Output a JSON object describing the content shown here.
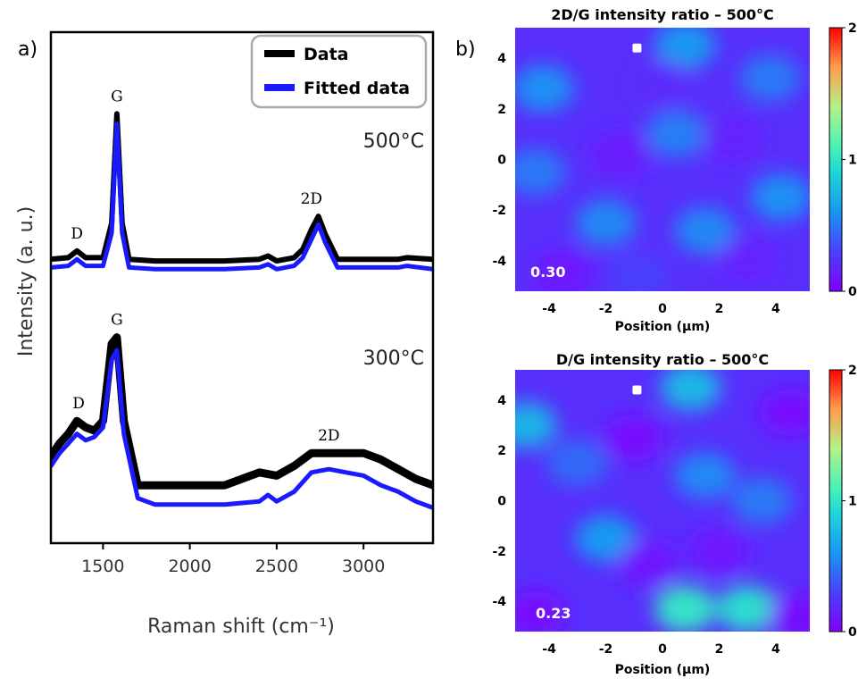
{
  "panel_labels": {
    "a": "a)",
    "b": "b)"
  },
  "chart_data": [
    {
      "type": "line",
      "xlabel": "Raman shift (cm⁻¹)",
      "ylabel": "Intensity (a. u.)",
      "xlim": [
        1200,
        3400
      ],
      "xticks": [
        1500,
        2000,
        2500,
        3000
      ],
      "legend": {
        "placement": "top-right",
        "entries": [
          "Data",
          "Fitted data"
        ]
      },
      "colors": {
        "data": "#000000",
        "fit": "#1a1aff"
      },
      "spectra": [
        {
          "temperature": "500°C",
          "peak_labels": [
            {
              "text": "D",
              "x": 1350
            },
            {
              "text": "G",
              "x": 1580
            },
            {
              "text": "2D",
              "x": 2700
            }
          ],
          "series": [
            {
              "name": "Data",
              "x": [
                1200,
                1300,
                1350,
                1400,
                1500,
                1550,
                1580,
                1610,
                1650,
                1800,
                2000,
                2200,
                2400,
                2450,
                2500,
                2600,
                2650,
                2700,
                2740,
                2780,
                2850,
                3000,
                3200,
                3250,
                3400
              ],
              "y": [
                0.08,
                0.09,
                0.13,
                0.09,
                0.09,
                0.3,
                0.96,
                0.3,
                0.08,
                0.07,
                0.07,
                0.07,
                0.08,
                0.1,
                0.07,
                0.09,
                0.14,
                0.26,
                0.34,
                0.23,
                0.08,
                0.08,
                0.08,
                0.09,
                0.08
              ]
            },
            {
              "name": "Fitted data",
              "x": [
                1200,
                1300,
                1350,
                1400,
                1500,
                1550,
                1580,
                1610,
                1650,
                1800,
                2000,
                2200,
                2400,
                2450,
                2500,
                2600,
                2650,
                2700,
                2740,
                2780,
                2850,
                3000,
                3200,
                3250,
                3400
              ],
              "y": [
                0.03,
                0.04,
                0.08,
                0.04,
                0.04,
                0.24,
                0.9,
                0.24,
                0.03,
                0.02,
                0.02,
                0.02,
                0.03,
                0.05,
                0.02,
                0.04,
                0.09,
                0.2,
                0.29,
                0.18,
                0.03,
                0.03,
                0.03,
                0.04,
                0.02
              ]
            }
          ]
        },
        {
          "temperature": "300°C",
          "peak_labels": [
            {
              "text": "D",
              "x": 1360
            },
            {
              "text": "G",
              "x": 1580
            },
            {
              "text": "2D",
              "x": 2800
            }
          ],
          "series": [
            {
              "name": "Data",
              "x": [
                1200,
                1250,
                1300,
                1350,
                1400,
                1450,
                1500,
                1550,
                1580,
                1620,
                1700,
                1800,
                2000,
                2200,
                2400,
                2500,
                2600,
                2700,
                2800,
                2900,
                3000,
                3100,
                3200,
                3300,
                3400
              ],
              "y": [
                0.17,
                0.21,
                0.24,
                0.28,
                0.26,
                0.25,
                0.28,
                0.52,
                0.54,
                0.28,
                0.08,
                0.08,
                0.08,
                0.08,
                0.12,
                0.11,
                0.14,
                0.18,
                0.18,
                0.18,
                0.18,
                0.16,
                0.13,
                0.1,
                0.08
              ]
            },
            {
              "name": "Fitted data",
              "x": [
                1200,
                1250,
                1300,
                1350,
                1400,
                1450,
                1500,
                1550,
                1580,
                1620,
                1700,
                1800,
                2000,
                2200,
                2400,
                2450,
                2500,
                2600,
                2700,
                2800,
                2900,
                3000,
                3100,
                3200,
                3300,
                3400
              ],
              "y": [
                0.14,
                0.18,
                0.21,
                0.24,
                0.22,
                0.23,
                0.26,
                0.47,
                0.5,
                0.24,
                0.04,
                0.02,
                0.02,
                0.02,
                0.03,
                0.05,
                0.03,
                0.06,
                0.12,
                0.13,
                0.12,
                0.11,
                0.08,
                0.06,
                0.03,
                0.01
              ]
            }
          ]
        }
      ]
    },
    {
      "type": "heatmap",
      "title": "2D/G intensity ratio – 500°C",
      "xlabel": "Position (µm)",
      "xlim": [
        -5.2,
        5.2
      ],
      "ylim": [
        -5.2,
        5.2
      ],
      "xticks": [
        -4,
        -2,
        0,
        2,
        4
      ],
      "yticks": [
        4,
        2,
        0,
        -2,
        -4
      ],
      "colorbar": {
        "range": [
          0,
          2
        ],
        "ticks": [
          0,
          1,
          2
        ],
        "colormap": "rainbow"
      },
      "annotation": "0.30",
      "marker": {
        "x": -0.9,
        "y": 4.4
      },
      "blobs": [
        {
          "x": 0.8,
          "y": 4.5,
          "v": 0.62
        },
        {
          "x": -4.2,
          "y": 2.8,
          "v": 0.58
        },
        {
          "x": 0.5,
          "y": 1.0,
          "v": 0.52
        },
        {
          "x": 3.8,
          "y": 3.2,
          "v": 0.5
        },
        {
          "x": -2.0,
          "y": -2.5,
          "v": 0.55
        },
        {
          "x": 1.5,
          "y": -2.8,
          "v": 0.55
        },
        {
          "x": 4.2,
          "y": -1.5,
          "v": 0.58
        },
        {
          "x": -4.5,
          "y": -0.5,
          "v": 0.5
        },
        {
          "x": -1.5,
          "y": 0.2,
          "v": 0.12
        },
        {
          "x": 2.5,
          "y": 0.8,
          "v": 0.15
        },
        {
          "x": -3.5,
          "y": -4.5,
          "v": 0.1
        },
        {
          "x": 3.0,
          "y": -4.0,
          "v": 0.15
        },
        {
          "x": 0.0,
          "y": 3.0,
          "v": 0.2
        },
        {
          "x": -0.8,
          "y": -4.6,
          "v": 0.3
        }
      ]
    },
    {
      "type": "heatmap",
      "title": "D/G intensity ratio – 500°C",
      "xlabel": "Position (µm)",
      "xlim": [
        -5.2,
        5.2
      ],
      "ylim": [
        -5.2,
        5.2
      ],
      "xticks": [
        -4,
        -2,
        0,
        2,
        4
      ],
      "yticks": [
        4,
        2,
        0,
        -2,
        -4
      ],
      "colorbar": {
        "range": [
          0,
          2
        ],
        "ticks": [
          0,
          1,
          2
        ],
        "colormap": "rainbow"
      },
      "annotation": "0.23",
      "marker": {
        "x": -0.9,
        "y": 4.4
      },
      "blobs": [
        {
          "x": 1.0,
          "y": 4.5,
          "v": 0.75
        },
        {
          "x": -4.8,
          "y": 3.0,
          "v": 0.72
        },
        {
          "x": 0.8,
          "y": -4.3,
          "v": 1.0
        },
        {
          "x": 3.0,
          "y": -4.3,
          "v": 0.95
        },
        {
          "x": -2.0,
          "y": -1.5,
          "v": 0.62
        },
        {
          "x": 1.5,
          "y": 1.0,
          "v": 0.55
        },
        {
          "x": -3.0,
          "y": 1.5,
          "v": 0.45
        },
        {
          "x": 3.5,
          "y": 0.0,
          "v": 0.5
        },
        {
          "x": -1.0,
          "y": 2.5,
          "v": 0.05
        },
        {
          "x": 4.5,
          "y": 3.5,
          "v": 0.05
        },
        {
          "x": -4.5,
          "y": -4.5,
          "v": 0.05
        },
        {
          "x": 2.0,
          "y": -2.0,
          "v": 0.1
        },
        {
          "x": -0.5,
          "y": -2.5,
          "v": 0.1
        },
        {
          "x": 4.8,
          "y": -4.6,
          "v": 0.05
        }
      ]
    }
  ]
}
